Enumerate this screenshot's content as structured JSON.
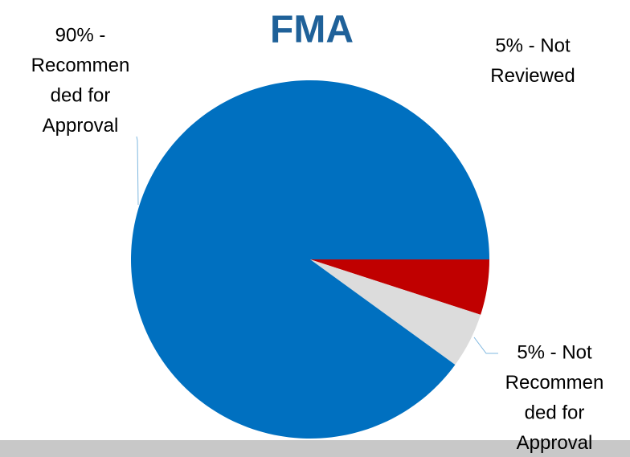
{
  "chart_data": {
    "type": "pie",
    "title": "FMA",
    "values": [
      5,
      5,
      90
    ],
    "value_labels": [
      [
        "5% - Not",
        "Reviewed"
      ],
      [
        "5% - Not",
        "Recommen",
        "ded for",
        "Approval"
      ],
      [
        "90% -",
        "Recommen",
        "ded for",
        "Approval"
      ]
    ],
    "colors": [
      "#c00000",
      "#dcdcdc",
      "#0070c0"
    ],
    "start_angle": 0,
    "direction": "clockwise"
  }
}
